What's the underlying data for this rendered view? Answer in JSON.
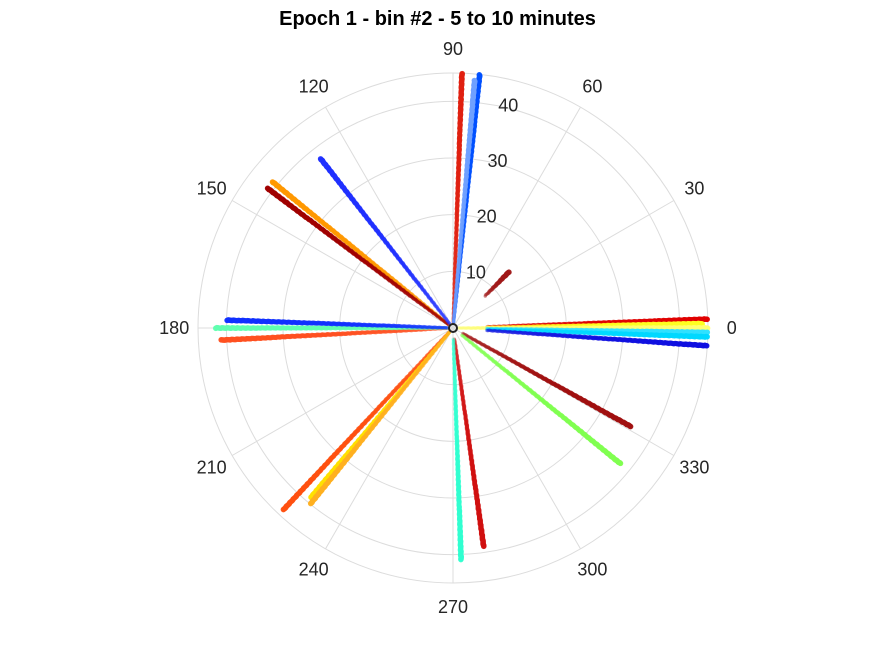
{
  "chart_data": {
    "type": "scatter",
    "projection": "polar",
    "title": "Epoch 1 - bin #2 - 5 to 10 minutes",
    "theta_unit": "degrees",
    "theta_ticks": [
      0,
      30,
      60,
      90,
      120,
      150,
      180,
      210,
      240,
      270,
      300,
      330
    ],
    "theta_tick_labels": [
      "0",
      "30",
      "60",
      "90",
      "120",
      "150",
      "180",
      "210",
      "240",
      "270",
      "300",
      "330"
    ],
    "r_ticks": [
      10,
      20,
      30,
      40
    ],
    "r_tick_labels": [
      "10",
      "20",
      "30",
      "40"
    ],
    "rlim": [
      0,
      45
    ],
    "grid": true,
    "colormap": "jet",
    "series": [
      {
        "theta": 88,
        "r_min": 1,
        "r_max": 45,
        "color": "#e02010"
      },
      {
        "theta": 84,
        "r_min": 1,
        "r_max": 45,
        "color": "#0050ff"
      },
      {
        "theta": 85,
        "r_min": 1,
        "r_max": 44,
        "color": "#6fa0ff"
      },
      {
        "theta": 45,
        "r_min": 8,
        "r_max": 14,
        "color": "#a01818"
      },
      {
        "theta": 2,
        "r_min": 6,
        "r_max": 45,
        "color": "#e00000"
      },
      {
        "theta": 1,
        "r_min": 6,
        "r_max": 44,
        "color": "#ffff20"
      },
      {
        "theta": 0,
        "r_min": 1,
        "r_max": 45,
        "color": "#ffff70"
      },
      {
        "theta": -1,
        "r_min": 6,
        "r_max": 45,
        "color": "#30e0ff"
      },
      {
        "theta": -2,
        "r_min": 6,
        "r_max": 45,
        "color": "#00d8ff"
      },
      {
        "theta": -4,
        "r_min": 6,
        "r_max": 45,
        "color": "#1010e0"
      },
      {
        "theta": -29,
        "r_min": 2,
        "r_max": 36,
        "color": "#a01010"
      },
      {
        "theta": -39,
        "r_min": 2,
        "r_max": 38,
        "color": "#80ff50"
      },
      {
        "theta": -82,
        "r_min": 2,
        "r_max": 39,
        "color": "#d01010"
      },
      {
        "theta": -88,
        "r_min": 2,
        "r_max": 41,
        "color": "#30ffd0"
      },
      {
        "theta": 227,
        "r_min": 1,
        "r_max": 44,
        "color": "#ff5010"
      },
      {
        "theta": 230,
        "r_min": 1,
        "r_max": 39,
        "color": "#ffe000"
      },
      {
        "theta": 231,
        "r_min": 1,
        "r_max": 40,
        "color": "#ffb020"
      },
      {
        "theta": 183,
        "r_min": 1,
        "r_max": 41,
        "color": "#ff5020"
      },
      {
        "theta": 180,
        "r_min": 1,
        "r_max": 42,
        "color": "#60ffb0"
      },
      {
        "theta": 178,
        "r_min": 1,
        "r_max": 40,
        "color": "#1030ff"
      },
      {
        "theta": 141,
        "r_min": 1,
        "r_max": 41,
        "color": "#ff9800"
      },
      {
        "theta": 143,
        "r_min": 1,
        "r_max": 41,
        "color": "#a00000"
      },
      {
        "theta": 128,
        "r_min": 1,
        "r_max": 38,
        "color": "#2030ff"
      }
    ]
  }
}
